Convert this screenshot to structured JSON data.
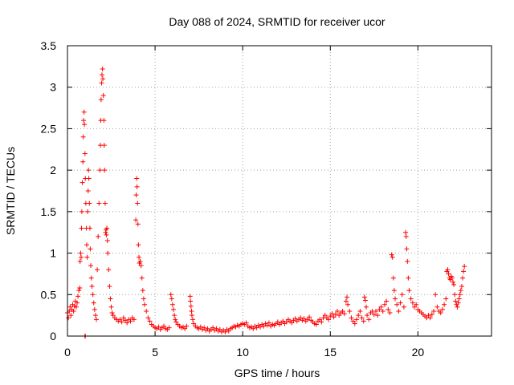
{
  "chart_data": {
    "type": "scatter",
    "title": "Day 088 of 2024, SRMTID for receiver ucor",
    "xlabel": "GPS time / hours",
    "ylabel": "SRMTID / TECUs",
    "xlim": [
      0,
      24.2
    ],
    "ylim": [
      0,
      3.5
    ],
    "xticks": [
      0,
      5,
      10,
      15,
      20
    ],
    "xtick_labels": [
      "0",
      "5",
      "10",
      "15",
      "20"
    ],
    "yticks": [
      0,
      0.5,
      1,
      1.5,
      2,
      2.5,
      3,
      3.5
    ],
    "ytick_labels": [
      "0",
      "0.5",
      "1",
      "1.5",
      "2",
      "2.5",
      "3",
      "3.5"
    ],
    "grid": true,
    "marker": "+",
    "color": "#ff0000",
    "series": [
      {
        "name": "SRMTID",
        "points": [
          [
            0.0,
            0.28
          ],
          [
            0.05,
            0.22
          ],
          [
            0.1,
            0.3
          ],
          [
            0.15,
            0.35
          ],
          [
            0.2,
            0.25
          ],
          [
            0.25,
            0.32
          ],
          [
            0.3,
            0.38
          ],
          [
            0.35,
            0.3
          ],
          [
            0.4,
            0.36
          ],
          [
            0.45,
            0.42
          ],
          [
            0.5,
            0.35
          ],
          [
            0.55,
            0.4
          ],
          [
            0.6,
            0.48
          ],
          [
            0.65,
            0.55
          ],
          [
            0.7,
            0.58
          ],
          [
            0.72,
            0.9
          ],
          [
            0.75,
            1.0
          ],
          [
            0.78,
            0.95
          ],
          [
            0.8,
            1.3
          ],
          [
            0.82,
            1.5
          ],
          [
            0.85,
            1.85
          ],
          [
            0.88,
            2.1
          ],
          [
            0.9,
            2.4
          ],
          [
            0.92,
            2.6
          ],
          [
            0.95,
            2.7
          ],
          [
            0.97,
            2.55
          ],
          [
            1.0,
            2.2
          ],
          [
            1.02,
            1.9
          ],
          [
            1.05,
            1.6
          ],
          [
            1.08,
            1.3
          ],
          [
            1.1,
            1.1
          ],
          [
            1.12,
            0.95
          ],
          [
            1.0,
            0.0
          ],
          [
            1.02,
            0.0
          ],
          [
            1.15,
            1.5
          ],
          [
            1.18,
            1.75
          ],
          [
            1.2,
            2.0
          ],
          [
            1.22,
            1.9
          ],
          [
            1.25,
            1.6
          ],
          [
            1.28,
            1.3
          ],
          [
            1.3,
            1.05
          ],
          [
            1.33,
            0.85
          ],
          [
            1.36,
            0.7
          ],
          [
            1.4,
            0.6
          ],
          [
            1.45,
            0.5
          ],
          [
            1.5,
            0.4
          ],
          [
            1.55,
            0.32
          ],
          [
            1.6,
            0.25
          ],
          [
            1.65,
            0.2
          ],
          [
            1.7,
            0.8
          ],
          [
            1.75,
            1.2
          ],
          [
            1.8,
            1.6
          ],
          [
            1.85,
            2.0
          ],
          [
            1.88,
            2.3
          ],
          [
            1.9,
            2.6
          ],
          [
            1.92,
            2.85
          ],
          [
            1.95,
            3.05
          ],
          [
            1.97,
            3.15
          ],
          [
            2.0,
            3.22
          ],
          [
            2.02,
            3.1
          ],
          [
            2.05,
            2.9
          ],
          [
            2.08,
            2.6
          ],
          [
            2.1,
            2.3
          ],
          [
            2.12,
            2.0
          ],
          [
            2.15,
            1.6
          ],
          [
            2.18,
            1.25
          ],
          [
            2.2,
            1.28
          ],
          [
            2.22,
            1.22
          ],
          [
            2.25,
            1.3
          ],
          [
            2.28,
            1.15
          ],
          [
            2.3,
            1.0
          ],
          [
            2.35,
            0.8
          ],
          [
            2.4,
            0.6
          ],
          [
            2.45,
            0.45
          ],
          [
            2.5,
            0.35
          ],
          [
            2.55,
            0.28
          ],
          [
            2.6,
            0.25
          ],
          [
            2.7,
            0.22
          ],
          [
            2.8,
            0.2
          ],
          [
            2.9,
            0.18
          ],
          [
            3.0,
            0.2
          ],
          [
            3.1,
            0.17
          ],
          [
            3.2,
            0.22
          ],
          [
            3.3,
            0.19
          ],
          [
            3.4,
            0.16
          ],
          [
            3.5,
            0.2
          ],
          [
            3.6,
            0.18
          ],
          [
            3.7,
            0.22
          ],
          [
            3.8,
            0.2
          ],
          [
            3.9,
            1.4
          ],
          [
            3.92,
            1.7
          ],
          [
            3.95,
            1.9
          ],
          [
            3.97,
            1.8
          ],
          [
            4.0,
            1.6
          ],
          [
            4.02,
            1.35
          ],
          [
            4.05,
            1.1
          ],
          [
            4.08,
            0.95
          ],
          [
            4.1,
            0.88
          ],
          [
            4.15,
            0.9
          ],
          [
            4.2,
            0.85
          ],
          [
            4.25,
            0.7
          ],
          [
            4.3,
            0.55
          ],
          [
            4.35,
            0.45
          ],
          [
            4.4,
            0.38
          ],
          [
            4.5,
            0.3
          ],
          [
            4.6,
            0.22
          ],
          [
            4.7,
            0.18
          ],
          [
            4.8,
            0.14
          ],
          [
            4.9,
            0.12
          ],
          [
            5.0,
            0.1
          ],
          [
            5.1,
            0.09
          ],
          [
            5.2,
            0.11
          ],
          [
            5.3,
            0.08
          ],
          [
            5.4,
            0.1
          ],
          [
            5.5,
            0.12
          ],
          [
            5.6,
            0.09
          ],
          [
            5.7,
            0.08
          ],
          [
            5.8,
            0.1
          ],
          [
            5.9,
            0.5
          ],
          [
            5.95,
            0.45
          ],
          [
            6.0,
            0.38
          ],
          [
            6.05,
            0.32
          ],
          [
            6.1,
            0.25
          ],
          [
            6.15,
            0.2
          ],
          [
            6.2,
            0.17
          ],
          [
            6.3,
            0.14
          ],
          [
            6.4,
            0.12
          ],
          [
            6.5,
            0.1
          ],
          [
            6.6,
            0.11
          ],
          [
            6.7,
            0.09
          ],
          [
            6.8,
            0.12
          ],
          [
            7.0,
            0.48
          ],
          [
            7.02,
            0.42
          ],
          [
            7.05,
            0.36
          ],
          [
            7.08,
            0.3
          ],
          [
            7.1,
            0.25
          ],
          [
            7.15,
            0.2
          ],
          [
            7.2,
            0.15
          ],
          [
            7.3,
            0.12
          ],
          [
            7.4,
            0.1
          ],
          [
            7.5,
            0.09
          ],
          [
            7.6,
            0.11
          ],
          [
            7.7,
            0.08
          ],
          [
            7.8,
            0.1
          ],
          [
            7.9,
            0.07
          ],
          [
            8.0,
            0.09
          ],
          [
            8.1,
            0.06
          ],
          [
            8.2,
            0.08
          ],
          [
            8.3,
            0.1
          ],
          [
            8.4,
            0.07
          ],
          [
            8.5,
            0.09
          ],
          [
            8.6,
            0.06
          ],
          [
            8.7,
            0.08
          ],
          [
            8.8,
            0.05
          ],
          [
            8.9,
            0.07
          ],
          [
            9.0,
            0.05
          ],
          [
            9.1,
            0.08
          ],
          [
            9.2,
            0.06
          ],
          [
            9.3,
            0.09
          ],
          [
            9.4,
            0.1
          ],
          [
            9.5,
            0.12
          ],
          [
            9.6,
            0.11
          ],
          [
            9.7,
            0.13
          ],
          [
            9.8,
            0.12
          ],
          [
            9.9,
            0.14
          ],
          [
            10.0,
            0.15
          ],
          [
            10.1,
            0.14
          ],
          [
            10.2,
            0.16
          ],
          [
            10.3,
            0.12
          ],
          [
            10.4,
            0.1
          ],
          [
            10.5,
            0.11
          ],
          [
            10.6,
            0.09
          ],
          [
            10.7,
            0.12
          ],
          [
            10.8,
            0.1
          ],
          [
            10.9,
            0.13
          ],
          [
            11.0,
            0.11
          ],
          [
            11.1,
            0.14
          ],
          [
            11.2,
            0.12
          ],
          [
            11.3,
            0.15
          ],
          [
            11.4,
            0.13
          ],
          [
            11.5,
            0.16
          ],
          [
            11.6,
            0.12
          ],
          [
            11.7,
            0.14
          ],
          [
            11.8,
            0.13
          ],
          [
            11.9,
            0.15
          ],
          [
            12.0,
            0.17
          ],
          [
            12.1,
            0.14
          ],
          [
            12.2,
            0.16
          ],
          [
            12.3,
            0.18
          ],
          [
            12.4,
            0.15
          ],
          [
            12.5,
            0.17
          ],
          [
            12.6,
            0.2
          ],
          [
            12.7,
            0.18
          ],
          [
            12.8,
            0.16
          ],
          [
            12.9,
            0.19
          ],
          [
            13.0,
            0.21
          ],
          [
            13.1,
            0.18
          ],
          [
            13.2,
            0.2
          ],
          [
            13.3,
            0.22
          ],
          [
            13.4,
            0.19
          ],
          [
            13.5,
            0.21
          ],
          [
            13.6,
            0.18
          ],
          [
            13.7,
            0.2
          ],
          [
            13.8,
            0.23
          ],
          [
            13.9,
            0.19
          ],
          [
            14.0,
            0.17
          ],
          [
            14.1,
            0.15
          ],
          [
            14.2,
            0.14
          ],
          [
            14.3,
            0.18
          ],
          [
            14.4,
            0.2
          ],
          [
            14.5,
            0.17
          ],
          [
            14.6,
            0.22
          ],
          [
            14.7,
            0.25
          ],
          [
            14.8,
            0.22
          ],
          [
            14.9,
            0.2
          ],
          [
            15.0,
            0.24
          ],
          [
            15.1,
            0.27
          ],
          [
            15.2,
            0.23
          ],
          [
            15.3,
            0.26
          ],
          [
            15.4,
            0.3
          ],
          [
            15.5,
            0.25
          ],
          [
            15.6,
            0.28
          ],
          [
            15.7,
            0.3
          ],
          [
            15.8,
            0.27
          ],
          [
            15.9,
            0.42
          ],
          [
            15.95,
            0.47
          ],
          [
            16.0,
            0.38
          ],
          [
            16.1,
            0.3
          ],
          [
            16.2,
            0.22
          ],
          [
            16.3,
            0.18
          ],
          [
            16.4,
            0.15
          ],
          [
            16.5,
            0.2
          ],
          [
            16.6,
            0.25
          ],
          [
            16.7,
            0.3
          ],
          [
            16.8,
            0.22
          ],
          [
            16.9,
            0.18
          ],
          [
            16.95,
            0.47
          ],
          [
            17.0,
            0.43
          ],
          [
            17.05,
            0.35
          ],
          [
            17.1,
            0.25
          ],
          [
            17.2,
            0.2
          ],
          [
            17.3,
            0.28
          ],
          [
            17.4,
            0.3
          ],
          [
            17.5,
            0.26
          ],
          [
            17.6,
            0.3
          ],
          [
            17.7,
            0.25
          ],
          [
            17.8,
            0.32
          ],
          [
            17.9,
            0.35
          ],
          [
            18.0,
            0.3
          ],
          [
            18.1,
            0.38
          ],
          [
            18.2,
            0.42
          ],
          [
            18.3,
            0.32
          ],
          [
            18.4,
            0.28
          ],
          [
            18.5,
            0.98
          ],
          [
            18.55,
            0.95
          ],
          [
            18.6,
            0.7
          ],
          [
            18.65,
            0.55
          ],
          [
            18.7,
            0.45
          ],
          [
            18.8,
            0.38
          ],
          [
            18.9,
            0.3
          ],
          [
            19.0,
            0.4
          ],
          [
            19.1,
            0.5
          ],
          [
            19.2,
            0.35
          ],
          [
            19.3,
            1.25
          ],
          [
            19.33,
            1.2
          ],
          [
            19.36,
            1.05
          ],
          [
            19.4,
            0.9
          ],
          [
            19.45,
            0.7
          ],
          [
            19.5,
            0.55
          ],
          [
            19.6,
            0.45
          ],
          [
            19.7,
            0.4
          ],
          [
            19.8,
            0.35
          ],
          [
            19.9,
            0.38
          ],
          [
            20.0,
            0.32
          ],
          [
            20.1,
            0.3
          ],
          [
            20.2,
            0.28
          ],
          [
            20.3,
            0.26
          ],
          [
            20.4,
            0.24
          ],
          [
            20.5,
            0.22
          ],
          [
            20.6,
            0.25
          ],
          [
            20.7,
            0.22
          ],
          [
            20.8,
            0.26
          ],
          [
            20.9,
            0.3
          ],
          [
            21.0,
            0.5
          ],
          [
            21.1,
            0.35
          ],
          [
            21.2,
            0.3
          ],
          [
            21.3,
            0.28
          ],
          [
            21.4,
            0.32
          ],
          [
            21.5,
            0.38
          ],
          [
            21.6,
            0.45
          ],
          [
            21.65,
            0.78
          ],
          [
            21.7,
            0.8
          ],
          [
            21.75,
            0.75
          ],
          [
            21.8,
            0.7
          ],
          [
            21.85,
            0.68
          ],
          [
            21.9,
            0.72
          ],
          [
            21.95,
            0.7
          ],
          [
            22.0,
            0.65
          ],
          [
            22.05,
            0.62
          ],
          [
            22.1,
            0.5
          ],
          [
            22.15,
            0.42
          ],
          [
            22.2,
            0.38
          ],
          [
            22.25,
            0.35
          ],
          [
            22.3,
            0.4
          ],
          [
            22.35,
            0.45
          ],
          [
            22.4,
            0.5
          ],
          [
            22.45,
            0.55
          ],
          [
            22.5,
            0.6
          ],
          [
            22.55,
            0.7
          ],
          [
            22.6,
            0.78
          ],
          [
            22.65,
            0.84
          ]
        ]
      }
    ]
  }
}
